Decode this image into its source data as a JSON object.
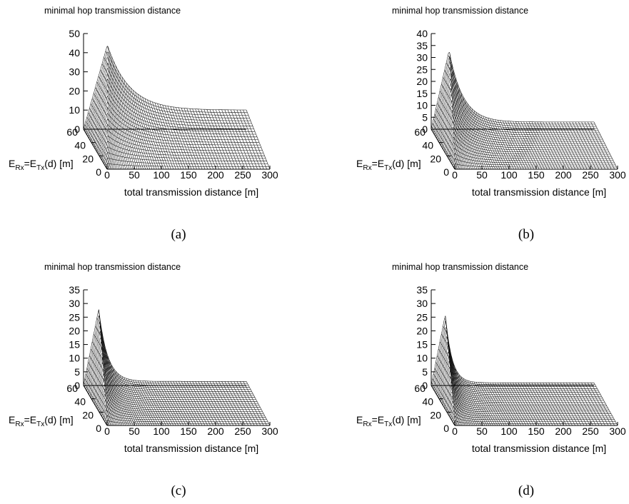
{
  "chart_data": [
    {
      "panel": "a",
      "caption": "(a)",
      "type": "surface3d",
      "title": "minimal hop transmission distance",
      "xlabel": "total transmission distance [m]",
      "ylabel": "E_Rx=E_Tx(d) [m]",
      "ylabel_parts": [
        "E",
        "Rx",
        "=E",
        "Tx",
        "(d) [m]"
      ],
      "xlim": [
        0,
        300
      ],
      "ylim": [
        0,
        60
      ],
      "zlim": [
        0,
        50
      ],
      "xticks": [
        0,
        50,
        100,
        150,
        200,
        250,
        300
      ],
      "yticks": [
        0,
        20,
        40,
        60
      ],
      "zticks": [
        0,
        10,
        20,
        30,
        40,
        50
      ],
      "peak": {
        "x": 44,
        "y": 60,
        "z": 44
      },
      "plateau_z": 10,
      "decay_scale": 40
    },
    {
      "panel": "b",
      "caption": "(b)",
      "type": "surface3d",
      "title": "minimal hop transmission distance",
      "xlabel": "total transmission distance [m]",
      "ylabel": "E_Rx=E_Tx(d) [m]",
      "ylabel_parts": [
        "E",
        "Rx",
        "=E",
        "Tx",
        "(d) [m]"
      ],
      "xlim": [
        0,
        300
      ],
      "ylim": [
        0,
        60
      ],
      "zlim": [
        0,
        40
      ],
      "xticks": [
        0,
        50,
        100,
        150,
        200,
        250,
        300
      ],
      "yticks": [
        0,
        20,
        40,
        60
      ],
      "zticks": [
        0,
        5,
        10,
        15,
        20,
        25,
        30,
        35,
        40
      ],
      "peak": {
        "x": 33,
        "y": 60,
        "z": 33
      },
      "plateau_z": 3,
      "decay_scale": 25
    },
    {
      "panel": "c",
      "caption": "(c)",
      "type": "surface3d",
      "title": "minimal hop transmission distance",
      "xlabel": "total transmission distance [m]",
      "ylabel": "E_Rx=E_Tx(d) [m]",
      "ylabel_parts": [
        "E",
        "Rx",
        "=E",
        "Tx",
        "(d) [m]"
      ],
      "xlim": [
        0,
        300
      ],
      "ylim": [
        0,
        60
      ],
      "zlim": [
        0,
        35
      ],
      "xticks": [
        0,
        50,
        100,
        150,
        200,
        250,
        300
      ],
      "yticks": [
        0,
        20,
        40,
        60
      ],
      "zticks": [
        0,
        5,
        10,
        15,
        20,
        25,
        30,
        35
      ],
      "peak": {
        "x": 28,
        "y": 60,
        "z": 28
      },
      "plateau_z": 1.5,
      "decay_scale": 16
    },
    {
      "panel": "d",
      "caption": "(d)",
      "type": "surface3d",
      "title": "minimal hop transmission distance",
      "xlabel": "total transmission distance [m]",
      "ylabel": "E_Rx=E_Tx(d) [m]",
      "ylabel_parts": [
        "E",
        "Rx",
        "=E",
        "Tx",
        "(d) [m]"
      ],
      "xlim": [
        0,
        300
      ],
      "ylim": [
        0,
        60
      ],
      "zlim": [
        0,
        35
      ],
      "xticks": [
        0,
        50,
        100,
        150,
        200,
        250,
        300
      ],
      "yticks": [
        0,
        20,
        40,
        60
      ],
      "zticks": [
        0,
        5,
        10,
        15,
        20,
        25,
        30,
        35
      ],
      "peak": {
        "x": 26,
        "y": 60,
        "z": 26
      },
      "plateau_z": 1,
      "decay_scale": 12
    }
  ]
}
